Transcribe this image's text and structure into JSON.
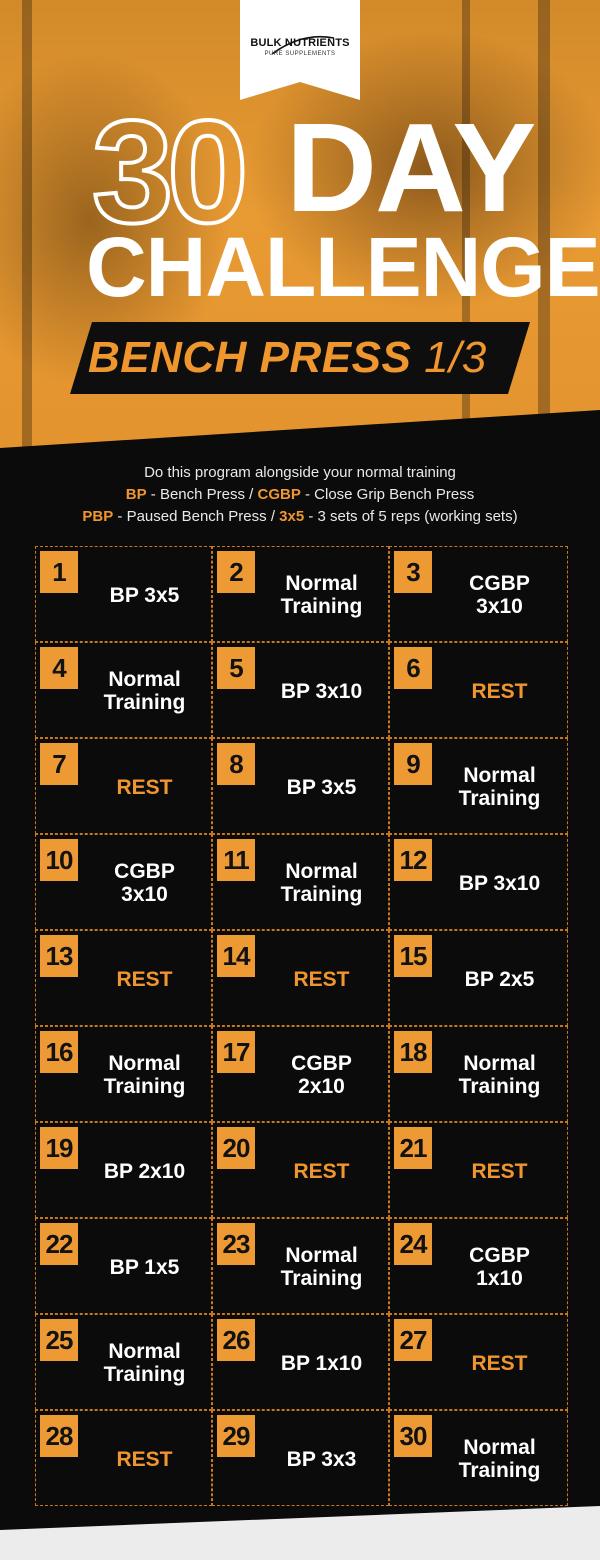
{
  "brand": {
    "name": "BULK NUTRIENTS",
    "tagline": "PURE SUPPLEMENTS"
  },
  "title": {
    "number": "30",
    "word1": "DAY",
    "word2": "CHALLENGE"
  },
  "subtitle": {
    "main": "BENCH PRESS",
    "fraction": "1/3"
  },
  "intro": {
    "line1": "Do this program alongside your normal training",
    "abbr_bp": "BP",
    "def_bp": " - Bench Press / ",
    "abbr_cgbp": "CGBP",
    "def_cgbp": " - Close Grip Bench Press",
    "abbr_pbp": "PBP",
    "def_pbp": " - Paused Bench Press / ",
    "abbr_3x5": "3x5",
    "def_3x5": " - 3 sets of 5 reps (working sets)"
  },
  "colors": {
    "accent": "#f0962f",
    "background": "#0b0b0b",
    "text": "#ffffff"
  },
  "days": [
    {
      "day": "1",
      "workout": "BP 3x5",
      "rest": false
    },
    {
      "day": "2",
      "workout": "Normal\nTraining",
      "rest": false
    },
    {
      "day": "3",
      "workout": "CGBP\n3x10",
      "rest": false
    },
    {
      "day": "4",
      "workout": "Normal\nTraining",
      "rest": false
    },
    {
      "day": "5",
      "workout": "BP 3x10",
      "rest": false
    },
    {
      "day": "6",
      "workout": "REST",
      "rest": true
    },
    {
      "day": "7",
      "workout": "REST",
      "rest": true
    },
    {
      "day": "8",
      "workout": "BP 3x5",
      "rest": false
    },
    {
      "day": "9",
      "workout": "Normal\nTraining",
      "rest": false
    },
    {
      "day": "10",
      "workout": "CGBP\n3x10",
      "rest": false
    },
    {
      "day": "11",
      "workout": "Normal\nTraining",
      "rest": false
    },
    {
      "day": "12",
      "workout": "BP 3x10",
      "rest": false
    },
    {
      "day": "13",
      "workout": "REST",
      "rest": true
    },
    {
      "day": "14",
      "workout": "REST",
      "rest": true
    },
    {
      "day": "15",
      "workout": "BP 2x5",
      "rest": false
    },
    {
      "day": "16",
      "workout": "Normal\nTraining",
      "rest": false
    },
    {
      "day": "17",
      "workout": "CGBP\n2x10",
      "rest": false
    },
    {
      "day": "18",
      "workout": "Normal\nTraining",
      "rest": false
    },
    {
      "day": "19",
      "workout": "BP 2x10",
      "rest": false
    },
    {
      "day": "20",
      "workout": "REST",
      "rest": true
    },
    {
      "day": "21",
      "workout": "REST",
      "rest": true
    },
    {
      "day": "22",
      "workout": "BP 1x5",
      "rest": false
    },
    {
      "day": "23",
      "workout": "Normal\nTraining",
      "rest": false
    },
    {
      "day": "24",
      "workout": "CGBP\n1x10",
      "rest": false
    },
    {
      "day": "25",
      "workout": "Normal\nTraining",
      "rest": false
    },
    {
      "day": "26",
      "workout": "BP 1x10",
      "rest": false
    },
    {
      "day": "27",
      "workout": "REST",
      "rest": true
    },
    {
      "day": "28",
      "workout": "REST",
      "rest": true
    },
    {
      "day": "29",
      "workout": "BP 3x3",
      "rest": false
    },
    {
      "day": "30",
      "workout": "Normal\nTraining",
      "rest": false
    }
  ]
}
